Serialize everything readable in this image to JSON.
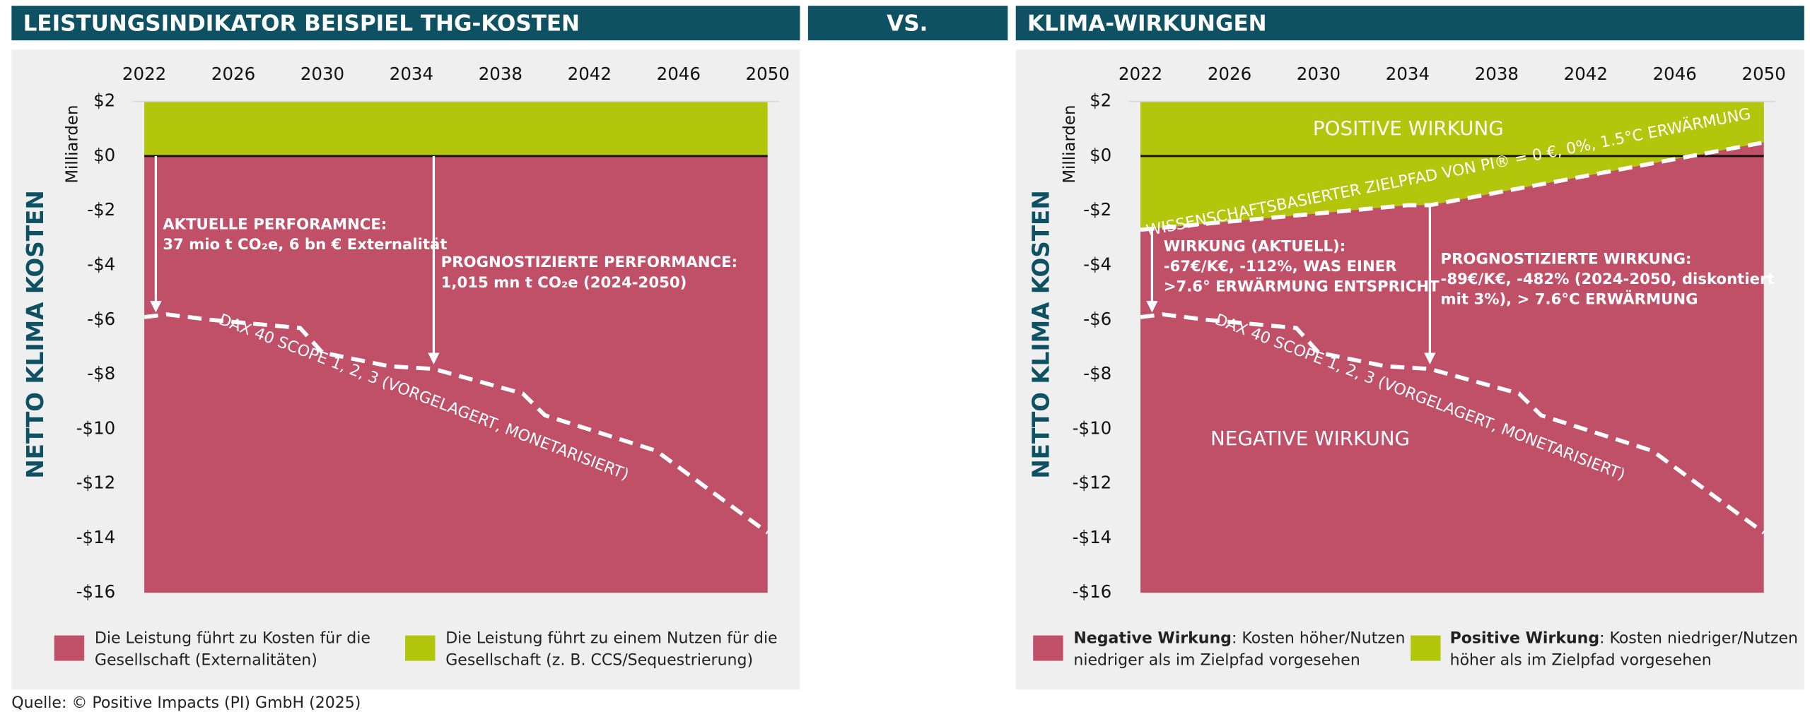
{
  "header": {
    "left_title": "LEISTUNGSINDIKATOR BEISPIEL THG-KOSTEN",
    "vs": "VS.",
    "right_title": "KLIMA-WIRKUNGEN"
  },
  "source": "Quelle: © Positive Impacts (PI) GmbH (2025)",
  "chart_data": [
    {
      "type": "line",
      "y_axis_label": "Milliarden",
      "y_axis_title": "NETTO KLIMA KOSTEN",
      "xlim": [
        2022,
        2050
      ],
      "xticks": [
        2022,
        2026,
        2030,
        2034,
        2038,
        2042,
        2046,
        2050
      ],
      "ylim": [
        -16,
        2
      ],
      "yticks": [
        {
          "value": 2,
          "label": "$2"
        },
        {
          "value": 0,
          "label": "$0"
        },
        {
          "value": -2,
          "label": "-$2"
        },
        {
          "value": -4,
          "label": "-$4"
        },
        {
          "value": -6,
          "label": "-$6"
        },
        {
          "value": -8,
          "label": "-$8"
        },
        {
          "value": -10,
          "label": "-$10"
        },
        {
          "value": -12,
          "label": "-$12"
        },
        {
          "value": -14,
          "label": "-$14"
        },
        {
          "value": -16,
          "label": "-$16"
        }
      ],
      "colors": {
        "negative": "#bf5067",
        "positive": "#b3c60c"
      },
      "series": [
        {
          "name": "DAX 40 SCOPE 1, 2, 3 (VORGELAGERT, MONETARISIERT)",
          "color": "#ffffff",
          "x": [
            2022,
            2023,
            2025,
            2029,
            2030,
            2033,
            2035,
            2039,
            2040,
            2045,
            2046,
            2050
          ],
          "values": [
            -5.9,
            -5.8,
            -6.0,
            -6.3,
            -7.2,
            -7.7,
            -7.8,
            -8.7,
            -9.5,
            -10.8,
            -11.4,
            -13.8
          ]
        }
      ],
      "annotations": [
        {
          "lines": [
            "AKTUELLE PERFORAMNCE:",
            "37 mio t CO₂e, 6 bn € Externalität"
          ]
        },
        {
          "lines": [
            "PROGNOSTIZIERTE PERFORMANCE:",
            "1,015 mn t CO₂e (2024-2050)"
          ]
        }
      ],
      "legend": [
        {
          "color": "#bf5067",
          "text": [
            "Die Leistung führt zu Kosten für die",
            "Gesellschaft (Externalitäten)"
          ]
        },
        {
          "color": "#b3c60c",
          "text": [
            "Die Leistung führt zu einem Nutzen für die",
            "Gesellschaft (z. B. CCS/Sequestrierung)"
          ]
        }
      ]
    },
    {
      "type": "line",
      "y_axis_label": "Milliarden",
      "y_axis_title": "NETTO KLIMA KOSTEN",
      "xlim": [
        2022,
        2050
      ],
      "xticks": [
        2022,
        2026,
        2030,
        2034,
        2038,
        2042,
        2046,
        2050
      ],
      "ylim": [
        -16,
        2
      ],
      "yticks": [
        {
          "value": 2,
          "label": "$2"
        },
        {
          "value": 0,
          "label": "$0"
        },
        {
          "value": -2,
          "label": "-$2"
        },
        {
          "value": -4,
          "label": "-$4"
        },
        {
          "value": -6,
          "label": "-$6"
        },
        {
          "value": -8,
          "label": "-$8"
        },
        {
          "value": -10,
          "label": "-$10"
        },
        {
          "value": -12,
          "label": "-$12"
        },
        {
          "value": -14,
          "label": "-$14"
        },
        {
          "value": -16,
          "label": "-$16"
        }
      ],
      "colors": {
        "negative": "#bf5067",
        "positive": "#b3c60c"
      },
      "series": [
        {
          "name": "DAX 40 SCOPE 1, 2, 3 (VORGELAGERT, MONETARISIERT)",
          "color": "#ffffff",
          "x": [
            2022,
            2023,
            2025,
            2029,
            2030,
            2033,
            2035,
            2039,
            2040,
            2045,
            2046,
            2050
          ],
          "values": [
            -5.9,
            -5.8,
            -6.0,
            -6.3,
            -7.2,
            -7.7,
            -7.8,
            -8.7,
            -9.5,
            -10.8,
            -11.4,
            -13.8
          ]
        },
        {
          "name": "WISSENSCHAFTSBASIERTER ZIELPFAD VON PI® = 0 €, 0%, 1.5°C ERWÄRMUNG",
          "color": "#ffffff",
          "x": [
            2022,
            2034,
            2035,
            2050
          ],
          "values": [
            -2.7,
            -1.8,
            -1.8,
            0.5
          ]
        }
      ],
      "region_labels": [
        "POSITIVE WIRKUNG",
        "NEGATIVE WIRKUNG"
      ],
      "annotations": [
        {
          "lines": [
            "WIRKUNG (AKTUELL):",
            "-67€/K€, -112%,  WAS EINER",
            ">7.6° ERWÄRMUNG ENTSPRICHT"
          ]
        },
        {
          "lines": [
            "PROGNOSTIZIERTE WIRKUNG:",
            "-89€/K€, -482% (2024-2050, diskontiert",
            "mit 3%), > 7.6°C ERWÄRMUNG"
          ]
        }
      ],
      "legend": [
        {
          "color": "#bf5067",
          "label": "Negative Wirkung",
          "text": [
            ": Kosten höher/Nutzen",
            "niedriger als im Zielpfad vorgesehen"
          ]
        },
        {
          "color": "#b3c60c",
          "label": "Positive Wirkung",
          "text": [
            ": Kosten niedriger/Nutzen",
            "höher als im Zielpfad vorgesehen"
          ]
        }
      ]
    }
  ]
}
